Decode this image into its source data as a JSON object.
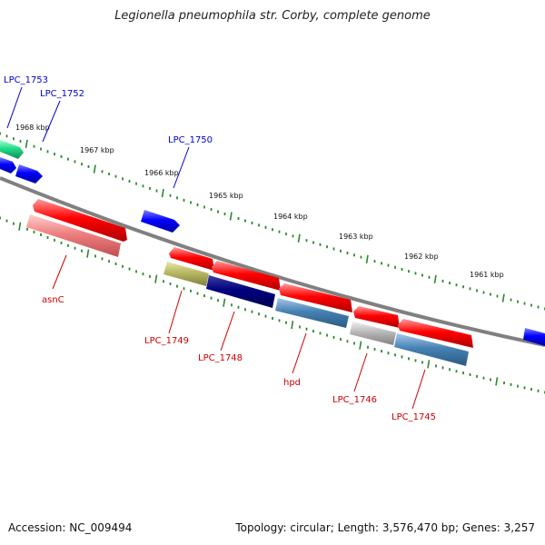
{
  "title": "Legionella pneumophila str. Corby, complete genome",
  "footer": {
    "accession": "Accession: NC_009494",
    "summary": "Topology: circular; Length: 3,576,470 bp; Genes: 3,257"
  },
  "scale_labels": [
    "1968 kbp",
    "1967 kbp",
    "1966 kbp",
    "1965 kbp",
    "1964 kbp",
    "1963 kbp",
    "1962 kbp",
    "1961 kbp"
  ],
  "gene_labels": {
    "forward": [
      "LPC_1753",
      "LPC_1752",
      "LPC_1750"
    ],
    "reverse": [
      "asnC",
      "LPC_1749",
      "LPC_1748",
      "hpd",
      "LPC_1746",
      "LPC_1745"
    ]
  },
  "colors": {
    "forward_label": "#0000cc",
    "reverse_label": "#cc0000",
    "backbone": "#808080",
    "tick": "#2a8a2a",
    "cds_red": "#ff0000",
    "gene_blue": "#0000ff",
    "gene_teal": "#22cc88",
    "asnC_pink": "#f08080",
    "LPC_1749_olive": "#b8b860",
    "LPC_1748_navy": "#000080",
    "hpd_steel": "#4682b4",
    "LPC_1746_grey": "#b0b0b0",
    "LPC_1745_steel": "#4682b4"
  }
}
